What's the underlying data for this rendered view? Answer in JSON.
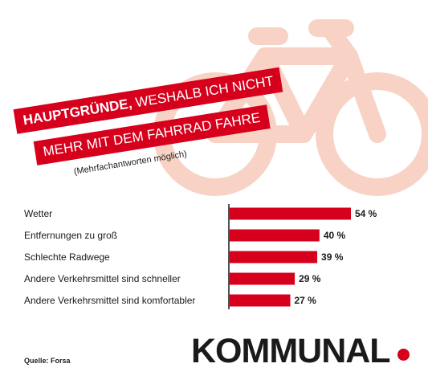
{
  "header": {
    "title_line1_bold": "HAUPTGRÜNDE,",
    "title_line1_rest": " WESHALB ICH NICHT",
    "title_line2": "MEHR MIT DEM FAHRRAD FAHRE",
    "subtitle": "(Mehrfachantworten möglich)"
  },
  "colors": {
    "accent": "#d6001c",
    "bike": "#f8d3c5",
    "text": "#1a1a1a"
  },
  "chart_data": {
    "type": "bar",
    "orientation": "horizontal",
    "categories": [
      "Wetter",
      "Entfernungen zu groß",
      "Schlechte Radwege",
      "Andere Verkehrsmittel sind schneller",
      "Andere Verkehrsmittel sind komfortabler"
    ],
    "values": [
      54,
      40,
      39,
      29,
      27
    ],
    "value_labels": [
      "54 %",
      "40 %",
      "39 %",
      "29 %",
      "27 %"
    ],
    "xlim": [
      0,
      54
    ]
  },
  "footer": {
    "source": "Quelle: Forsa",
    "brand": "KOMMUNAL"
  },
  "icons": {
    "background": "bicycle-icon"
  }
}
